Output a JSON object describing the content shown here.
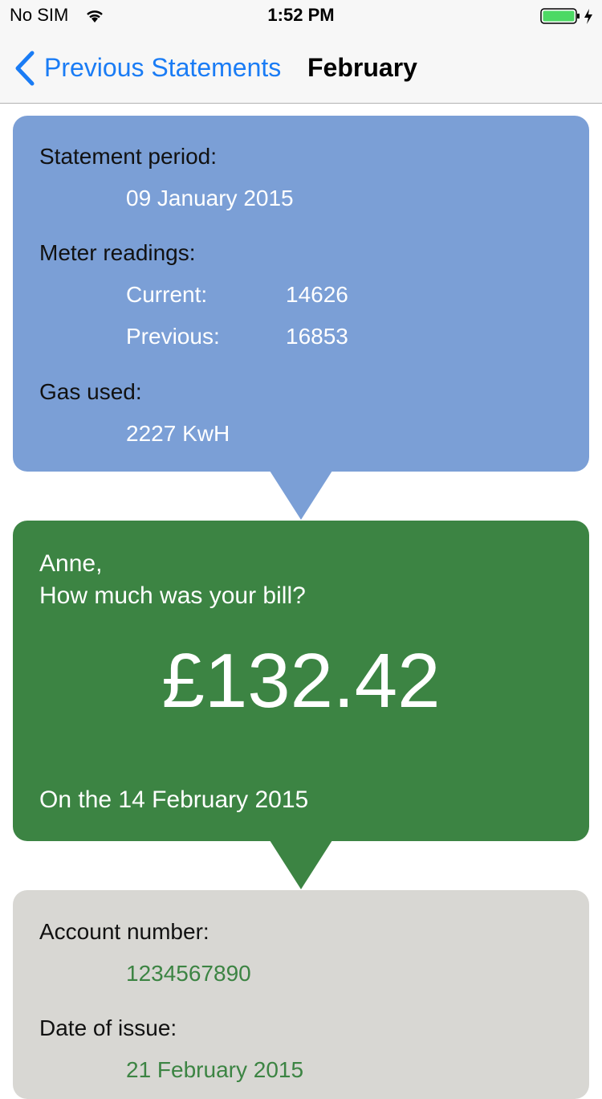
{
  "status_bar": {
    "carrier": "No SIM",
    "time": "1:52 PM"
  },
  "nav": {
    "back": "Previous Statements",
    "title": "February"
  },
  "usage_card": {
    "period_label": "Statement period:",
    "period": "09 January 2015",
    "readings_label": "Meter readings:",
    "current_label": "Current:",
    "current": "14626",
    "previous_label": "Previous:",
    "previous": "16853",
    "gas_label": "Gas used:",
    "gas": "2227 KwH"
  },
  "bill_card": {
    "greeting": "Anne,",
    "question": "How much was your bill?",
    "amount": "£132.42",
    "date": "On the 14 February 2015"
  },
  "account_card": {
    "account_label": "Account number:",
    "account": "1234567890",
    "issue_label": "Date of issue:",
    "issue_date": "21 February 2015"
  }
}
